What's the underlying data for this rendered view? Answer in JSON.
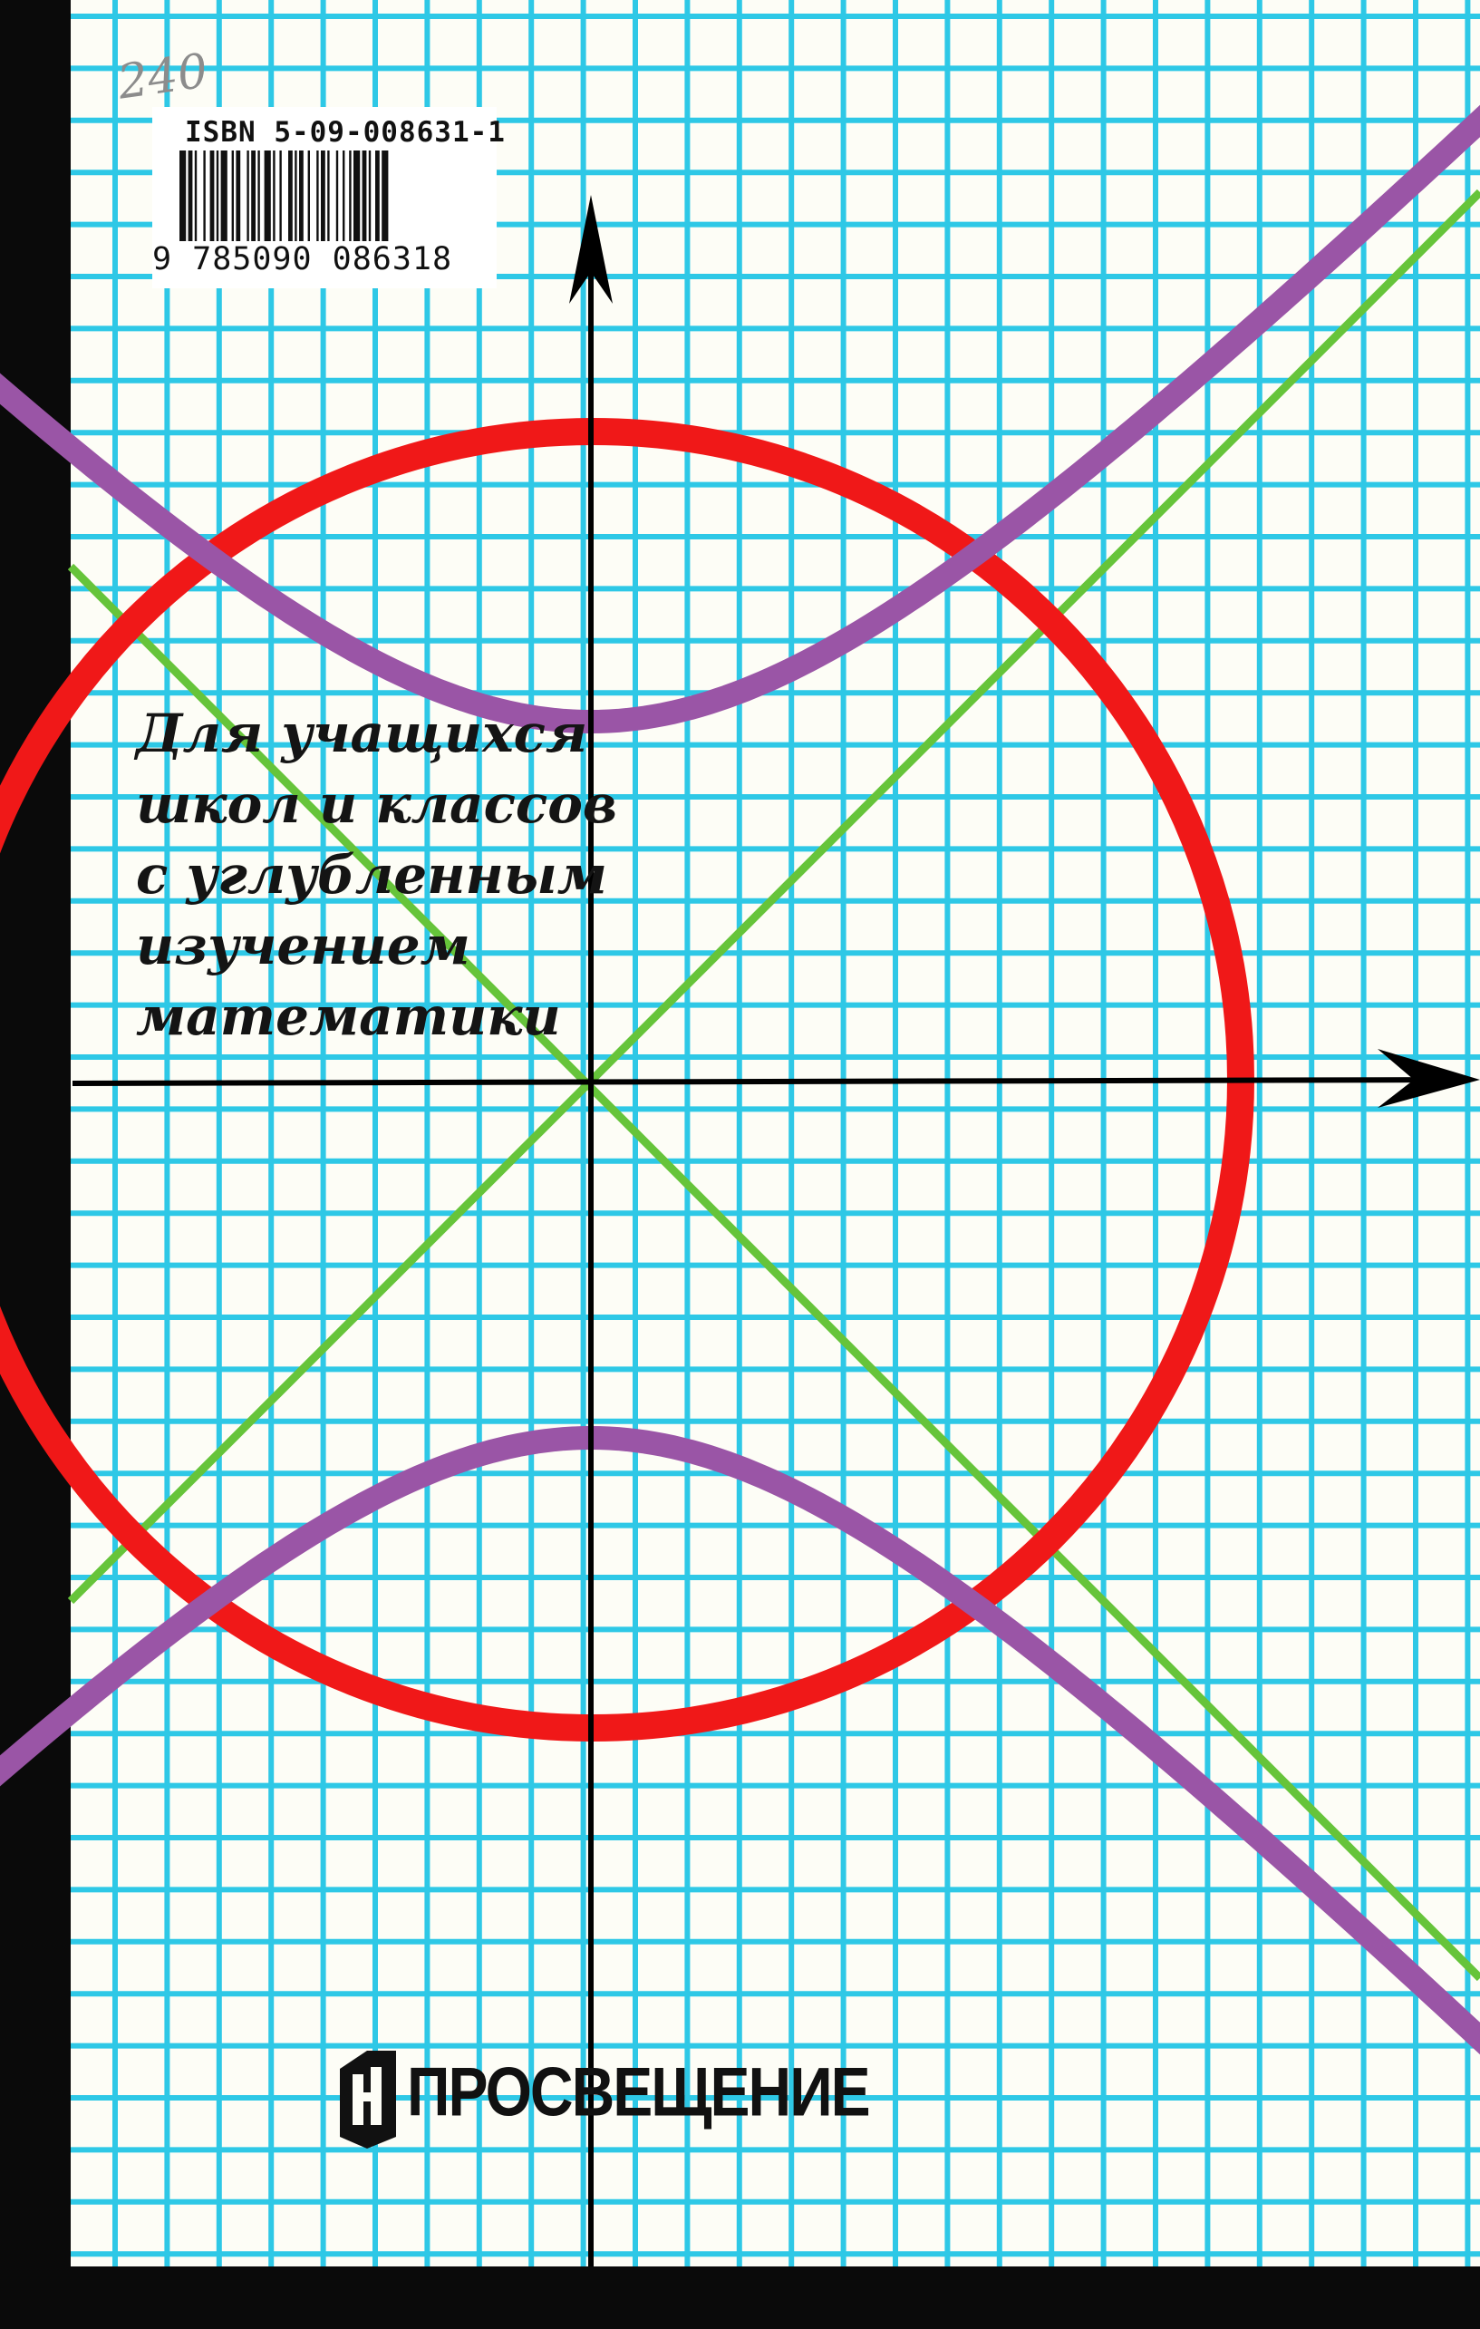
{
  "cover": {
    "isbn": "ISBN 5-09-008631-1",
    "barcode_digits": "9 785090 086318",
    "handwritten_note": "240",
    "audience_lines": [
      "Для учащихся",
      "школ и классов",
      "с углубленным",
      "изучением",
      "математики"
    ],
    "publisher": "ПРОСВЕЩЕНИЕ",
    "publisher_logo_icon": "prosveshchenie-logo-icon",
    "colors": {
      "page": "#fdfdf6",
      "grid": "#2ec8e6",
      "circle": "#f01818",
      "hyperbola": "#9a55a6",
      "asymptotes": "#66c43a",
      "axes": "#000000"
    }
  }
}
